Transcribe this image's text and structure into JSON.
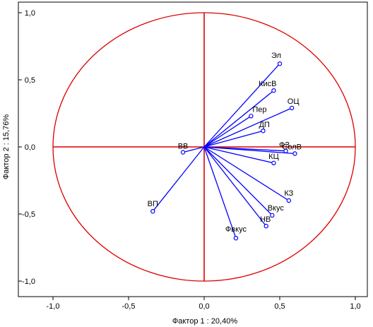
{
  "chart_data": {
    "type": "scatter",
    "subtype": "factor-loading-circle",
    "xlabel": "Фактор 1 : 20,40%",
    "ylabel": "Фактор 2 : 15,76%",
    "xlim": [
      -1.0,
      1.0
    ],
    "ylim": [
      -1.0,
      1.0
    ],
    "xticks": [
      "-1,0",
      "-0,5",
      "0,0",
      "0,5",
      "1,0"
    ],
    "yticks": [
      "1,0",
      "0,5",
      "0,0",
      "-0,5",
      "-1,0"
    ],
    "grid": false,
    "unit_circle": true,
    "zero_lines": true,
    "colors": {
      "vectors": "#0000ff",
      "circle": "#dd0000",
      "axes": "#dd0000"
    },
    "points": [
      {
        "label": "Эл",
        "x": 0.5,
        "y": 0.62
      },
      {
        "label": "КисВ",
        "x": 0.46,
        "y": 0.42
      },
      {
        "label": "ОЦ",
        "x": 0.58,
        "y": 0.29
      },
      {
        "label": "Пер",
        "x": 0.31,
        "y": 0.23
      },
      {
        "label": "ДП",
        "x": 0.39,
        "y": 0.12
      },
      {
        "label": "ВВ",
        "x": -0.14,
        "y": -0.04
      },
      {
        "label": "ФЗ",
        "x": 0.54,
        "y": -0.03
      },
      {
        "label": "СолВ",
        "x": 0.6,
        "y": -0.05
      },
      {
        "label": "КЦ",
        "x": 0.46,
        "y": -0.12
      },
      {
        "label": "КЗ",
        "x": 0.56,
        "y": -0.4
      },
      {
        "label": "ВП",
        "x": -0.34,
        "y": -0.48
      },
      {
        "label": "Вкус",
        "x": 0.45,
        "y": -0.51
      },
      {
        "label": "НВ",
        "x": 0.41,
        "y": -0.59
      },
      {
        "label": "Фвкус",
        "x": 0.21,
        "y": -0.68
      }
    ]
  }
}
